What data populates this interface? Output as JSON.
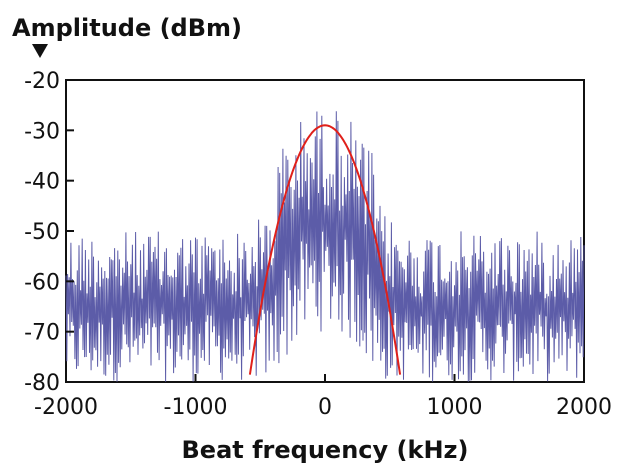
{
  "chart_data": {
    "type": "line",
    "ylabel": "Amplitude (dBm)",
    "xlabel": "Beat frequency (kHz)",
    "xlim": [
      -2000,
      2000
    ],
    "ylim": [
      -80,
      -20
    ],
    "x_ticks": [
      -2000,
      -1000,
      0,
      1000,
      2000
    ],
    "y_ticks": [
      -20,
      -30,
      -40,
      -50,
      -60,
      -70,
      -80
    ],
    "x_tick_labels": [
      "-2000",
      "-1000",
      "0",
      "1000",
      "2000"
    ],
    "y_tick_labels": [
      "-20",
      "-30",
      "-40",
      "-50",
      "-60",
      "-70",
      "-80"
    ],
    "grid": false,
    "colors": {
      "spectrum": "#5c5ca8",
      "fit": "#e0201a",
      "axis": "#111111"
    },
    "series": [
      {
        "role": "measured-spectrum",
        "noise_floor_range": [
          -80,
          -50
        ],
        "peak_region": {
          "x_range": [
            -400,
            400
          ],
          "max": -25
        }
      },
      {
        "role": "fit-curve",
        "shape": "gaussian",
        "center": 0,
        "peak": -29,
        "x_range": [
          -600,
          600
        ]
      }
    ]
  }
}
